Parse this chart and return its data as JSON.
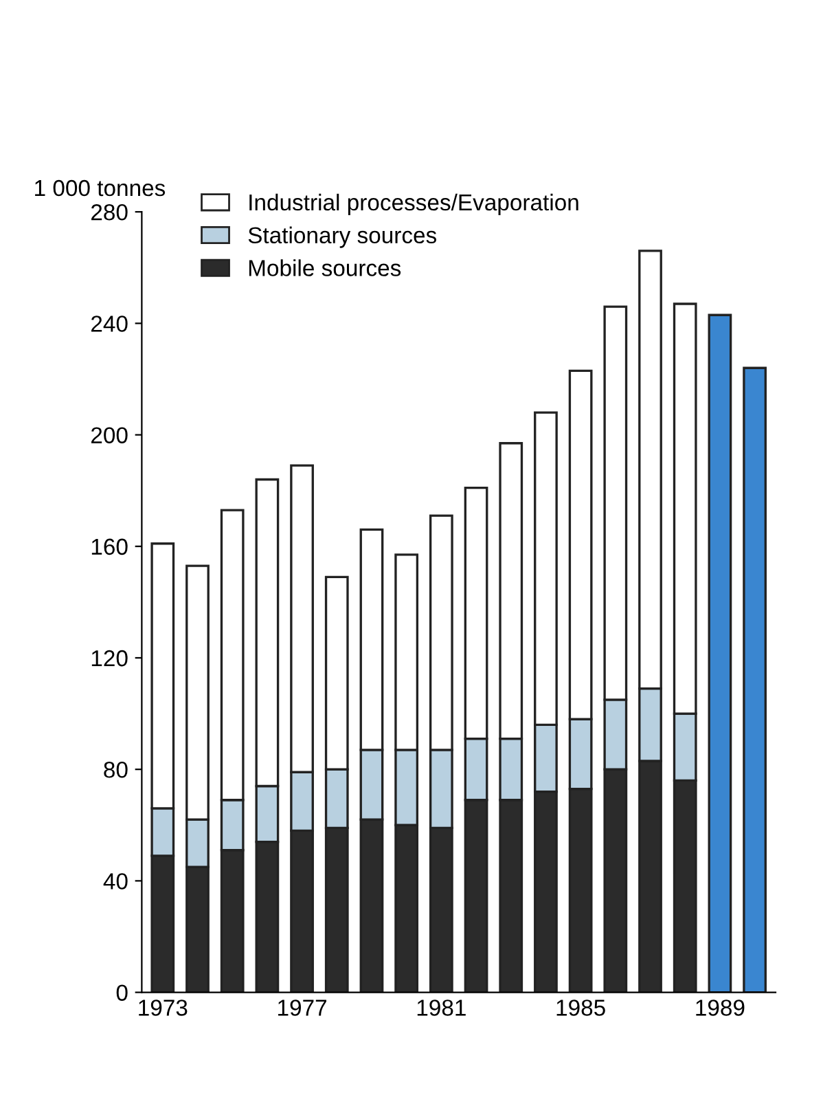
{
  "chart_data": {
    "type": "bar",
    "stacked": true,
    "ylabel": "1 000 tonnes",
    "categories": [
      "1973",
      null,
      null,
      null,
      "1977",
      null,
      null,
      null,
      "1981",
      null,
      null,
      null,
      "1985",
      null,
      null,
      null,
      "1989",
      null
    ],
    "series": [
      {
        "name": "Mobile sources",
        "color": "#2b2b2b",
        "values": [
          49,
          45,
          51,
          54,
          58,
          59,
          62,
          60,
          59,
          69,
          69,
          72,
          73,
          80,
          83,
          76,
          null,
          null
        ]
      },
      {
        "name": "Stationary sources",
        "color": "#b8d0e0",
        "values": [
          17,
          17,
          18,
          20,
          21,
          21,
          25,
          27,
          28,
          22,
          22,
          24,
          25,
          25,
          26,
          24,
          null,
          null
        ]
      },
      {
        "name": "Industrial processes/Evaporation",
        "color": "#ffffff",
        "values": [
          95,
          91,
          104,
          110,
          110,
          69,
          79,
          70,
          84,
          90,
          106,
          112,
          125,
          141,
          157,
          147,
          null,
          null
        ]
      },
      {
        "color": "#3a86d0",
        "values": [
          null,
          null,
          null,
          null,
          null,
          null,
          null,
          null,
          null,
          null,
          null,
          null,
          null,
          null,
          null,
          null,
          243,
          224
        ]
      }
    ],
    "ylim": [
      0,
      280
    ],
    "yticks": [
      0,
      40,
      80,
      120,
      160,
      200,
      240,
      280
    ],
    "grid": false,
    "legend": "top left"
  }
}
